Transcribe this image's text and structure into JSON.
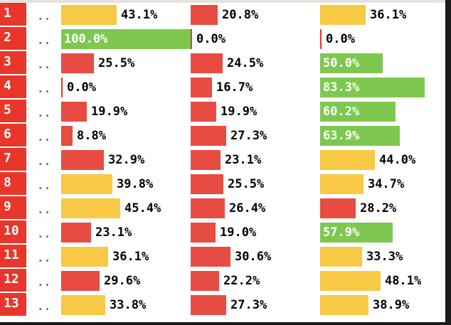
{
  "palette": {
    "red": "#e84b42",
    "yellow": "#f7c945",
    "green": "#7ec850"
  },
  "columns": 3,
  "rows": [
    {
      "label": "1",
      "dots": "..",
      "cells": [
        {
          "value": 43.1,
          "text": "43.1%",
          "color": "#f7c945"
        },
        {
          "value": 20.8,
          "text": "20.8%",
          "color": "#e84b42"
        },
        {
          "value": 36.1,
          "text": "36.1%",
          "color": "#f7c945"
        }
      ]
    },
    {
      "label": "2",
      "dots": "..",
      "cells": [
        {
          "value": 100.0,
          "text": "100.0%",
          "color": "#7ec850"
        },
        {
          "value": 0.0,
          "text": "0.0%",
          "color": "#e84b42"
        },
        {
          "value": 0.0,
          "text": "0.0%",
          "color": "#e84b42"
        }
      ]
    },
    {
      "label": "3",
      "dots": "..",
      "cells": [
        {
          "value": 25.5,
          "text": "25.5%",
          "color": "#e84b42"
        },
        {
          "value": 24.5,
          "text": "24.5%",
          "color": "#e84b42"
        },
        {
          "value": 50.0,
          "text": "50.0%",
          "color": "#7ec850"
        }
      ]
    },
    {
      "label": "4",
      "dots": "..",
      "cells": [
        {
          "value": 0.0,
          "text": "0.0%",
          "color": "#e84b42"
        },
        {
          "value": 16.7,
          "text": "16.7%",
          "color": "#e84b42"
        },
        {
          "value": 83.3,
          "text": "83.3%",
          "color": "#7ec850"
        }
      ]
    },
    {
      "label": "5",
      "dots": "..",
      "cells": [
        {
          "value": 19.9,
          "text": "19.9%",
          "color": "#e84b42"
        },
        {
          "value": 19.9,
          "text": "19.9%",
          "color": "#e84b42"
        },
        {
          "value": 60.2,
          "text": "60.2%",
          "color": "#7ec850"
        }
      ]
    },
    {
      "label": "6",
      "dots": "..",
      "cells": [
        {
          "value": 8.8,
          "text": "8.8%",
          "color": "#e84b42"
        },
        {
          "value": 27.3,
          "text": "27.3%",
          "color": "#e84b42"
        },
        {
          "value": 63.9,
          "text": "63.9%",
          "color": "#7ec850"
        }
      ]
    },
    {
      "label": "7",
      "dots": "..",
      "cells": [
        {
          "value": 32.9,
          "text": "32.9%",
          "color": "#e84b42"
        },
        {
          "value": 23.1,
          "text": "23.1%",
          "color": "#e84b42"
        },
        {
          "value": 44.0,
          "text": "44.0%",
          "color": "#f7c945"
        }
      ]
    },
    {
      "label": "8",
      "dots": "..",
      "cells": [
        {
          "value": 39.8,
          "text": "39.8%",
          "color": "#f7c945"
        },
        {
          "value": 25.5,
          "text": "25.5%",
          "color": "#e84b42"
        },
        {
          "value": 34.7,
          "text": "34.7%",
          "color": "#f7c945"
        }
      ]
    },
    {
      "label": "9",
      "dots": "..",
      "cells": [
        {
          "value": 45.4,
          "text": "45.4%",
          "color": "#f7c945"
        },
        {
          "value": 26.4,
          "text": "26.4%",
          "color": "#e84b42"
        },
        {
          "value": 28.2,
          "text": "28.2%",
          "color": "#e84b42"
        }
      ]
    },
    {
      "label": "10",
      "dots": "..",
      "cells": [
        {
          "value": 23.1,
          "text": "23.1%",
          "color": "#e84b42"
        },
        {
          "value": 19.0,
          "text": "19.0%",
          "color": "#e84b42"
        },
        {
          "value": 57.9,
          "text": "57.9%",
          "color": "#7ec850"
        }
      ]
    },
    {
      "label": "11",
      "dots": "..",
      "cells": [
        {
          "value": 36.1,
          "text": "36.1%",
          "color": "#f7c945"
        },
        {
          "value": 30.6,
          "text": "30.6%",
          "color": "#e84b42"
        },
        {
          "value": 33.3,
          "text": "33.3%",
          "color": "#f7c945"
        }
      ]
    },
    {
      "label": "12",
      "dots": "..",
      "cells": [
        {
          "value": 29.6,
          "text": "29.6%",
          "color": "#e84b42"
        },
        {
          "value": 22.2,
          "text": "22.2%",
          "color": "#e84b42"
        },
        {
          "value": 48.1,
          "text": "48.1%",
          "color": "#f7c945"
        }
      ]
    },
    {
      "label": "13",
      "dots": "..",
      "cells": [
        {
          "value": 33.8,
          "text": "33.8%",
          "color": "#f7c945"
        },
        {
          "value": 27.3,
          "text": "27.3%",
          "color": "#e84b42"
        },
        {
          "value": 38.9,
          "text": "38.9%",
          "color": "#f7c945"
        }
      ]
    }
  ]
}
